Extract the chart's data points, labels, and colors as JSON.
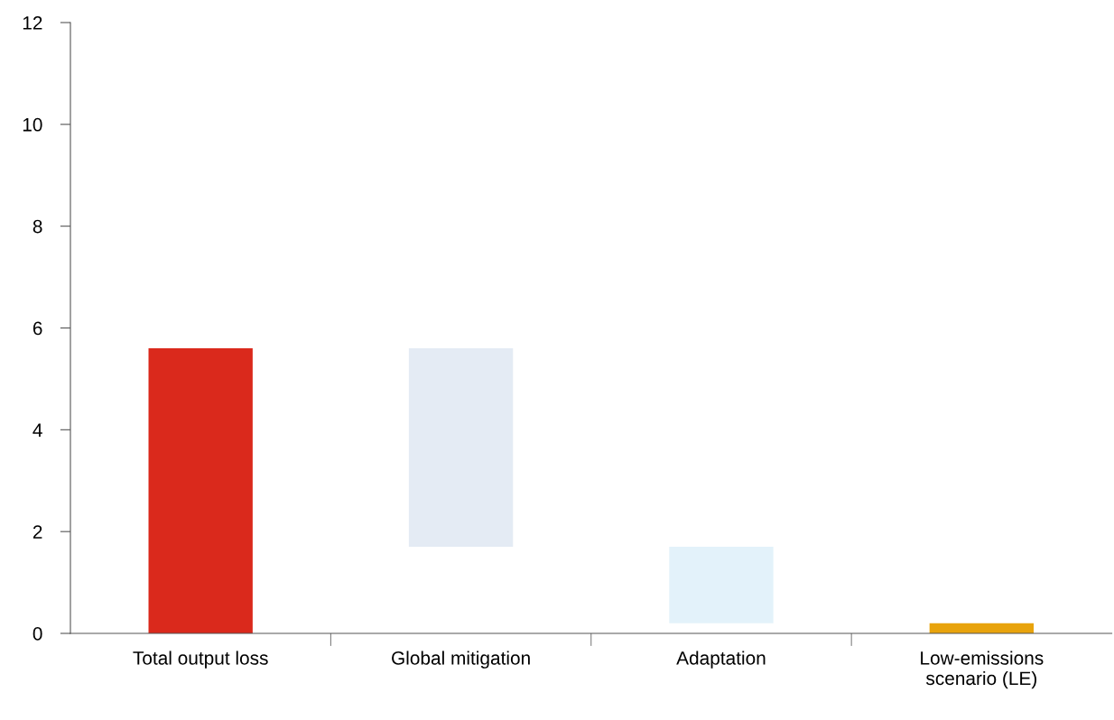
{
  "chart_data": {
    "type": "bar",
    "categories": [
      "Total output loss",
      "Global mitigation",
      "Adaptation",
      "Low-emissions\nscenario (LE)"
    ],
    "values": [
      5.6,
      3.9,
      1.5,
      0.2
    ],
    "base": [
      0,
      1.7,
      0.2,
      0
    ],
    "colors": [
      "#da291c",
      "#e4ebf4",
      "#e3f2fa",
      "#e8a30c"
    ],
    "ylim": [
      0,
      12
    ],
    "yticks": [
      0,
      2,
      4,
      6,
      8,
      10,
      12
    ],
    "grid": false,
    "legend": false
  }
}
